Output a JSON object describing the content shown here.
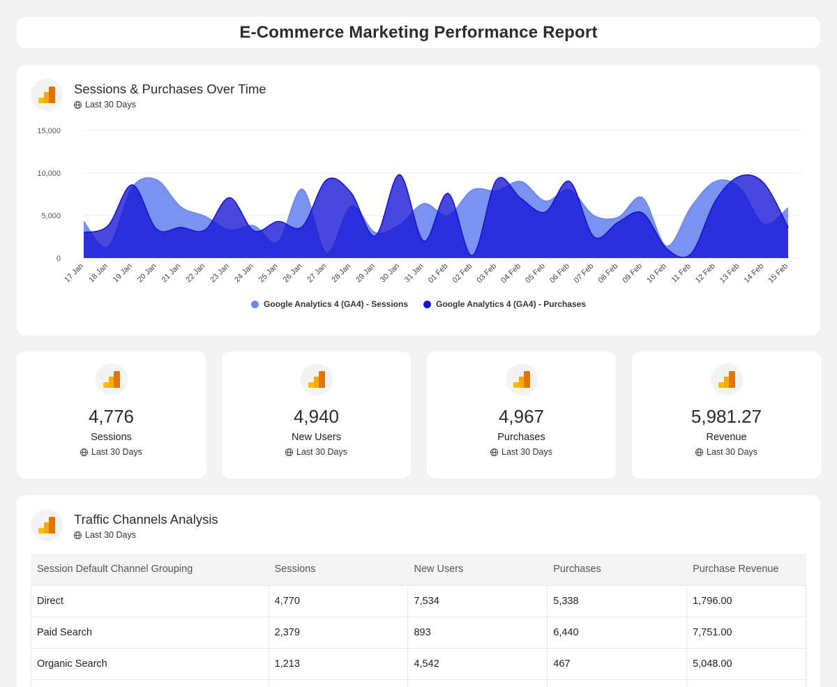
{
  "report": {
    "title": "E-Commerce Marketing Performance Report"
  },
  "chart_widget": {
    "title": "Sessions & Purchases Over Time",
    "subtitle": "Last 30 Days",
    "icon": "google-analytics-icon"
  },
  "chart_data": {
    "type": "area",
    "categories": [
      "17 Jan",
      "18 Jan",
      "19 Jan",
      "20 Jan",
      "21 Jan",
      "22 Jan",
      "23 Jan",
      "24 Jan",
      "25 Jan",
      "26 Jan",
      "27 Jan",
      "28 Jan",
      "29 Jan",
      "30 Jan",
      "31 Jan",
      "01 Feb",
      "02 Feb",
      "03 Feb",
      "04 Feb",
      "05 Feb",
      "06 Feb",
      "07 Feb",
      "08 Feb",
      "09 Feb",
      "10 Feb",
      "11 Feb",
      "12 Feb",
      "13 Feb",
      "14 Feb",
      "15 Feb"
    ],
    "series": [
      {
        "name": "Google Analytics 4 (GA4) - Sessions",
        "color": "#6b86ee",
        "values": [
          4300,
          1300,
          8300,
          9200,
          6000,
          4900,
          3300,
          3800,
          1900,
          8100,
          600,
          6100,
          3000,
          3900,
          6400,
          5000,
          8000,
          7900,
          9000,
          6700,
          8000,
          5000,
          4800,
          7100,
          1400,
          6000,
          9000,
          8300,
          4000,
          5900
        ]
      },
      {
        "name": "Google Analytics 4 (GA4) - Purchases",
        "color": "#1515d6",
        "values": [
          3000,
          3800,
          8600,
          3400,
          3600,
          3300,
          7100,
          3200,
          4300,
          3700,
          9200,
          7700,
          2600,
          9800,
          2000,
          7600,
          300,
          9200,
          7000,
          5400,
          9000,
          2500,
          4200,
          5300,
          1100,
          500,
          6700,
          9600,
          8800,
          3600
        ]
      }
    ],
    "ylim": [
      0,
      15000
    ],
    "yticks": [
      0,
      5000,
      10000,
      15000
    ],
    "ytick_labels": [
      "0",
      "5,000",
      "10,000",
      "15,000"
    ],
    "grid": true,
    "legend_position": "bottom"
  },
  "kpis": [
    {
      "value": "4,776",
      "label": "Sessions",
      "sub": "Last 30 Days",
      "icon": "google-analytics-icon"
    },
    {
      "value": "4,940",
      "label": "New Users",
      "sub": "Last 30 Days",
      "icon": "google-analytics-icon"
    },
    {
      "value": "4,967",
      "label": "Purchases",
      "sub": "Last 30 Days",
      "icon": "google-analytics-icon"
    },
    {
      "value": "5,981.27",
      "label": "Revenue",
      "sub": "Last 30 Days",
      "icon": "google-analytics-icon"
    }
  ],
  "table_widget": {
    "title": "Traffic Channels Analysis",
    "subtitle": "Last 30 Days",
    "icon": "google-analytics-icon",
    "columns": [
      "Session Default Channel Grouping",
      "Sessions",
      "New Users",
      "Purchases",
      "Purchase Revenue"
    ],
    "rows": [
      [
        "Direct",
        "4,770",
        "7,534",
        "5,338",
        "1,796.00"
      ],
      [
        "Paid Search",
        "2,379",
        "893",
        "6,440",
        "7,751.00"
      ],
      [
        "Organic Search",
        "1,213",
        "4,542",
        "467",
        "5,048.00"
      ]
    ]
  },
  "colors": {
    "page_bg": "#f2f2f3",
    "card_bg": "#ffffff",
    "sessions": "#6b86ee",
    "purchases": "#1515d6"
  }
}
